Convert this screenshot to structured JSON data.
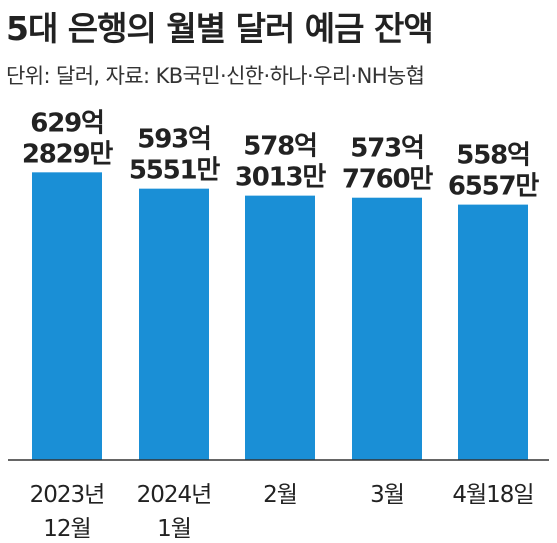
{
  "title": "5대 은행의 월별 달러 예금 잔액",
  "subtitle": "단위: 달러, 자료: KB국민·신한·하나·우리·NH농협",
  "colors": {
    "bar": "#1a8fd6",
    "text": "#222222",
    "baseline": "#333333"
  },
  "chart_data": {
    "type": "bar",
    "categories": [
      [
        "2023년",
        "12월"
      ],
      [
        "2024년",
        "1월"
      ],
      [
        "2월"
      ],
      [
        "3월"
      ],
      [
        "4월18일"
      ]
    ],
    "values": [
      62928290000,
      59355510000,
      57830130000,
      57377600000,
      55865570000
    ],
    "data_labels": [
      [
        "629억",
        "2829만"
      ],
      [
        "593억",
        "5551만"
      ],
      [
        "578억",
        "3013만"
      ],
      [
        "573억",
        "7760만"
      ],
      [
        "558억",
        "6557만"
      ]
    ],
    "ylim": [
      0,
      70000000000
    ],
    "grid": false
  }
}
